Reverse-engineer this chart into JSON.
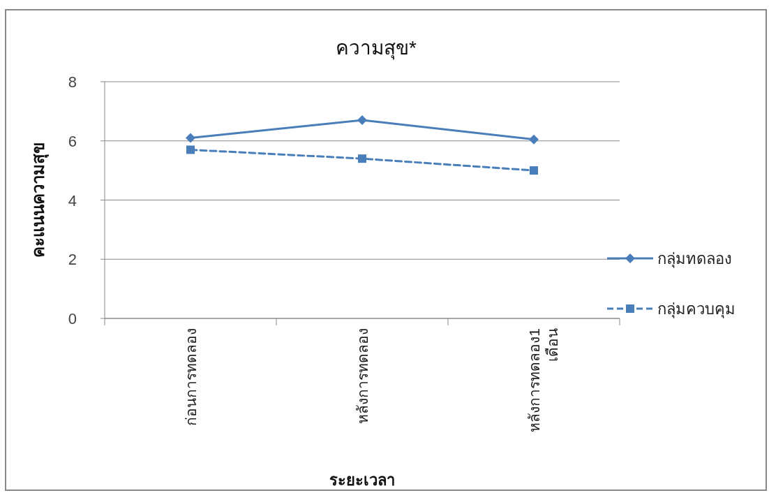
{
  "chart_data": {
    "type": "line",
    "title": "ความสุข*",
    "xlabel": "ระยะเวลา",
    "ylabel": "คะแนนความสุข",
    "categories": [
      "ก่อนการทดลอง",
      "หลังการทดลอง",
      "หลังการทดลอง1 เดือน"
    ],
    "series": [
      {
        "name": "กลุ่มทดลอง",
        "color": "#4a7ebb",
        "marker": "diamond",
        "line_style": "solid",
        "values": [
          6.1,
          6.7,
          6.05
        ]
      },
      {
        "name": "กลุ่มควบคุม",
        "color": "#4a7ebb",
        "marker": "square",
        "line_style": "dashed",
        "values": [
          5.7,
          5.4,
          5.0
        ]
      }
    ],
    "ylim": [
      0,
      8
    ],
    "yticks": [
      0,
      2,
      4,
      6,
      8
    ],
    "grid": "y",
    "legend": "right"
  }
}
